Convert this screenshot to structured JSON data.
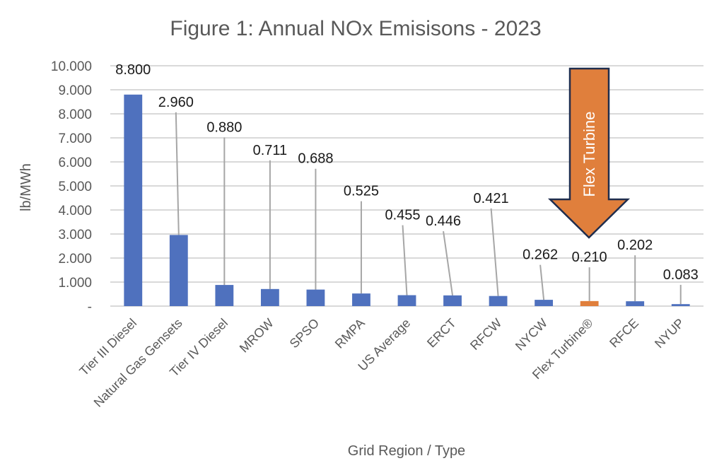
{
  "chart_data": {
    "type": "bar",
    "title": "Figure 1: Annual NOx Emisisons - 2023",
    "xlabel": "Grid Region / Type",
    "ylabel": "lb/MWh",
    "ylim": [
      0,
      10
    ],
    "yticks": [
      0,
      1,
      2,
      3,
      4,
      5,
      6,
      7,
      8,
      9,
      10
    ],
    "ytick_labels": [
      "-",
      "1.000",
      "2.000",
      "3.000",
      "4.000",
      "5.000",
      "6.000",
      "7.000",
      "8.000",
      "9.000",
      "10.000"
    ],
    "grid": true,
    "legend": "none",
    "categories": [
      "Tier III Diesel",
      "Natural Gas Gensets",
      "Tier IV Diesel",
      "MROW",
      "SPSO",
      "RMPA",
      "US Average",
      "ERCT",
      "RFCW",
      "NYCW",
      "Flex Turbine®",
      "RFCE",
      "NYUP"
    ],
    "values": [
      8.8,
      2.96,
      0.88,
      0.711,
      0.688,
      0.525,
      0.455,
      0.446,
      0.421,
      0.262,
      0.21,
      0.202,
      0.083
    ],
    "data_labels": [
      "8.800",
      "2.960",
      "0.880",
      "0.711",
      "0.688",
      "0.525",
      "0.455",
      "0.446",
      "0.421",
      "0.262",
      "0.210",
      "0.202",
      "0.083"
    ],
    "highlight_index": 10,
    "colors": {
      "bar": "#4f71be",
      "highlight": "#e07f3c",
      "grid": "#d9d9d9",
      "leader": "#a6a6a6"
    },
    "annotation": {
      "type": "arrow-down",
      "text": "Flex Turbine",
      "target": "Flex Turbine®",
      "fill": "#e07f3c",
      "border": "#1f2d4d"
    }
  }
}
